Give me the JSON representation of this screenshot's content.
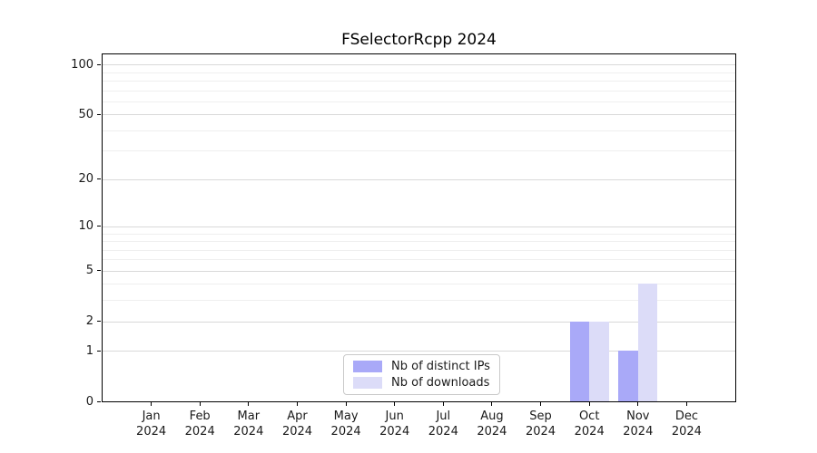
{
  "chart_data": {
    "type": "bar",
    "title": "FSelectorRcpp 2024",
    "categories": [
      "Jan",
      "Feb",
      "Mar",
      "Apr",
      "May",
      "Jun",
      "Jul",
      "Aug",
      "Sep",
      "Oct",
      "Nov",
      "Dec"
    ],
    "category_year": "2024",
    "series": [
      {
        "name": "Nb of distinct IPs",
        "color": "#a9a9f8",
        "values": [
          0,
          0,
          0,
          0,
          0,
          0,
          0,
          0,
          0,
          2,
          1,
          0
        ]
      },
      {
        "name": "Nb of downloads",
        "color": "#dcdcf8",
        "values": [
          0,
          0,
          0,
          0,
          0,
          0,
          0,
          0,
          0,
          2,
          4,
          0
        ]
      }
    ],
    "y_axis": {
      "scale": "log1p",
      "tick_labels": [
        "0",
        "1",
        "2",
        "5",
        "10",
        "20",
        "50",
        "100"
      ],
      "ticks": [
        0,
        1,
        2,
        5,
        10,
        20,
        50,
        100
      ],
      "minor_gridlines": [
        3,
        4,
        6,
        7,
        8,
        9,
        30,
        40,
        60,
        70,
        80,
        90
      ],
      "ylim": [
        0,
        115
      ]
    },
    "x_axis": {
      "label_line1_list": [
        "Jan",
        "Feb",
        "Mar",
        "Apr",
        "May",
        "Jun",
        "Jul",
        "Aug",
        "Sep",
        "Oct",
        "Nov",
        "Dec"
      ],
      "label_line2": "2024"
    },
    "grid": "horizontal",
    "legend_position": "inside-bottom-center",
    "colors": {
      "spine": "#000000",
      "major_grid": "#d9d9d9",
      "minor_grid": "#efefef",
      "text": "#1a1a1a"
    }
  }
}
